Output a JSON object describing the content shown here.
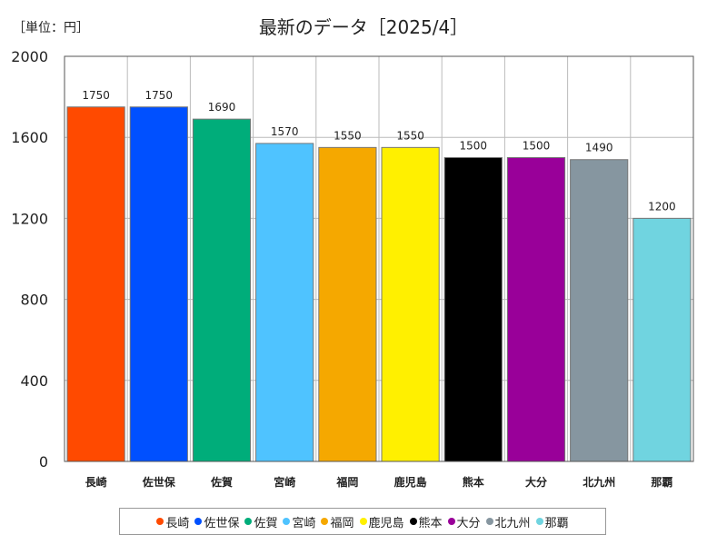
{
  "chart_data": {
    "type": "bar",
    "title": "最新のデータ［2025/4］",
    "unit_label": "［単位：円］",
    "categories": [
      "長崎",
      "佐世保",
      "佐賀",
      "宮崎",
      "福岡",
      "鹿児島",
      "熊本",
      "大分",
      "北九州",
      "那覇"
    ],
    "values": [
      1750,
      1750,
      1690,
      1570,
      1550,
      1550,
      1500,
      1500,
      1490,
      1200
    ],
    "colors": [
      "#ff4a00",
      "#0050ff",
      "#00ad7a",
      "#4fc3ff",
      "#f5a800",
      "#fff000",
      "#000000",
      "#990099",
      "#8696a0",
      "#70d4e0"
    ],
    "ylim": [
      0,
      2000
    ],
    "yticks": [
      "0",
      "400",
      "800",
      "1200",
      "1600",
      "2000"
    ],
    "data_labels": [
      "1750",
      "1750",
      "1690",
      "1570",
      "1550",
      "1550",
      "1500",
      "1500",
      "1490",
      "1200"
    ],
    "grid": true,
    "legend": "bottom"
  }
}
